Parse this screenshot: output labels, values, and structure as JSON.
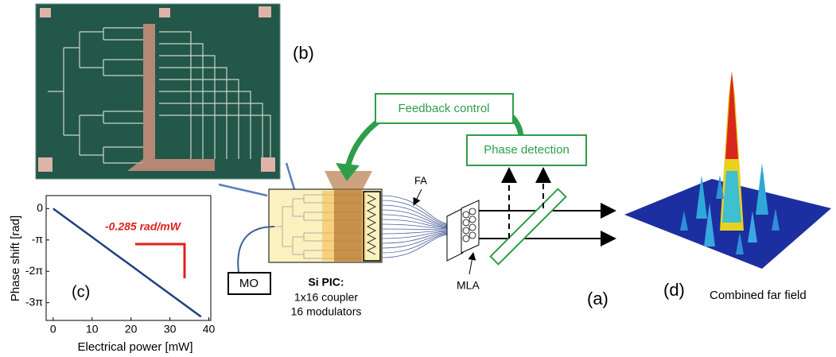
{
  "panel_b": {
    "label": "(b)"
  },
  "feedback": "Feedback control",
  "phase_detection": "Phase detection",
  "fa": "FA",
  "mo": "MO",
  "pic": {
    "title": "Si PIC:",
    "lines": [
      "1x16 coupler",
      "16 modulators"
    ]
  },
  "mla": "MLA",
  "panel_a": "(a)",
  "panel_d": "(d)",
  "far_field": "Combined far field",
  "plot": {
    "label": "(c)",
    "annotation": "-0.285 rad/mW",
    "xlabel": "Electrical power [mW]",
    "ylabel": "Phase shift [rad]",
    "x": [
      0,
      5,
      10,
      15,
      20,
      25,
      30,
      35,
      38
    ],
    "y": [
      0,
      -1.43,
      -2.85,
      -4.28,
      -5.7,
      -7.13,
      -8.55,
      -9.98,
      -10.83
    ],
    "color": "#1f3f7f",
    "xlim": [
      -1.8,
      40.5
    ],
    "ylim": [
      -11.2,
      1.3
    ],
    "xticks": [
      0,
      10,
      20,
      30,
      40
    ],
    "yticks": [
      0,
      {
        "value": -3.1416,
        "label": "-π"
      },
      {
        "value": -6.2832,
        "label": "-2π"
      },
      {
        "value": -9.4248,
        "label": "-3π"
      }
    ]
  }
}
